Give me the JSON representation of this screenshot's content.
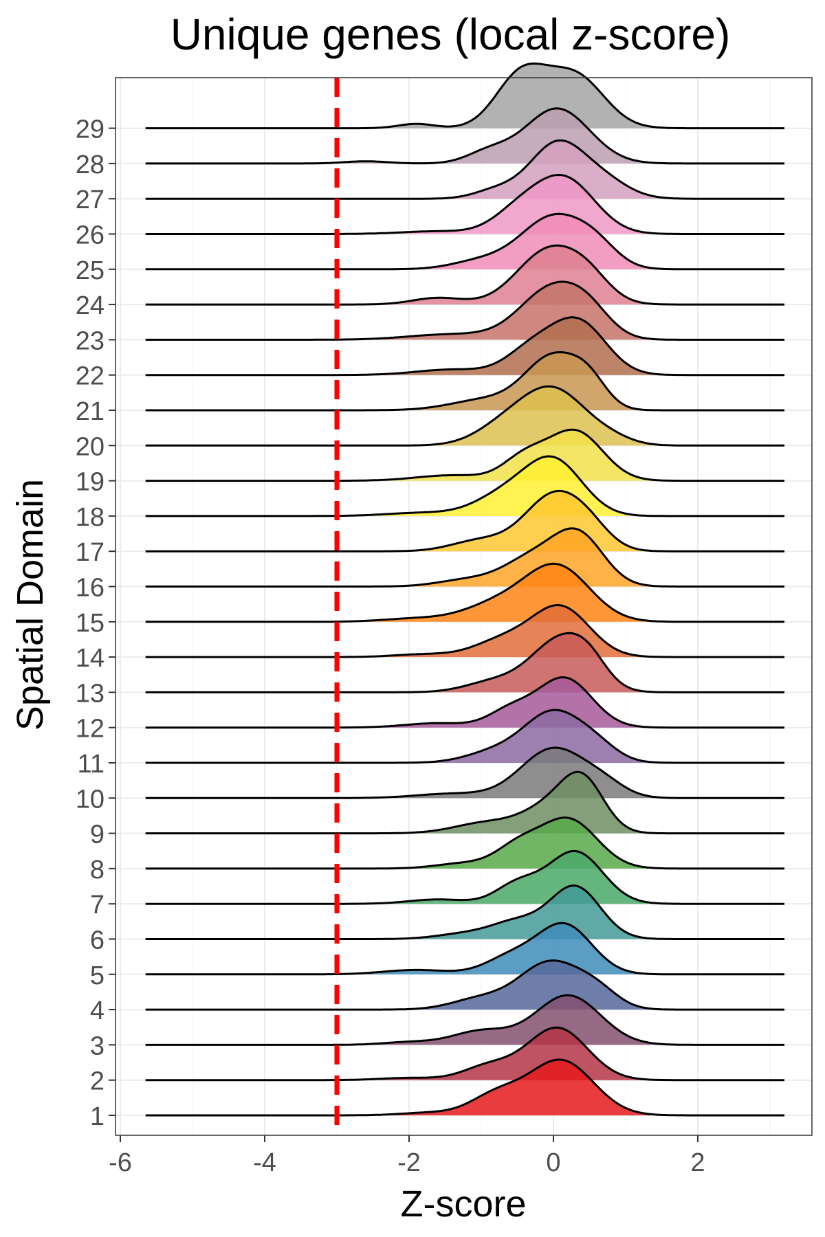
{
  "chart_data": {
    "type": "ridgeline",
    "title": "Unique genes (local z-score)",
    "xlabel": "Z-score",
    "ylabel": "Spatial Domain",
    "xlim": [
      -6.2,
      3.6
    ],
    "x_ticks": [
      -6,
      -4,
      -2,
      0,
      2
    ],
    "x_tick_labels": [
      "-6",
      "-4",
      "-2",
      "0",
      "2"
    ],
    "categories": [
      "1",
      "2",
      "3",
      "4",
      "5",
      "6",
      "7",
      "8",
      "9",
      "10",
      "11",
      "12",
      "13",
      "14",
      "15",
      "16",
      "17",
      "18",
      "19",
      "20",
      "21",
      "22",
      "23",
      "24",
      "25",
      "26",
      "27",
      "28",
      "29"
    ],
    "density_x_range": [
      -5.65,
      3.2
    ],
    "threshold_line": {
      "x": -3,
      "color": "#ff0000",
      "style": "dashed"
    },
    "grid": true,
    "series": [
      {
        "name": "1",
        "color": "#e41a1c",
        "peaks": [
          {
            "mu": 0.1,
            "sigma": 0.45,
            "amp": 1.0
          },
          {
            "mu": -0.8,
            "sigma": 0.35,
            "amp": 0.35
          },
          {
            "mu": -1.7,
            "sigma": 0.4,
            "amp": 0.05
          }
        ]
      },
      {
        "name": "2",
        "color": "#b43545",
        "peaks": [
          {
            "mu": 0.05,
            "sigma": 0.42,
            "amp": 0.95
          },
          {
            "mu": -0.9,
            "sigma": 0.35,
            "amp": 0.25
          },
          {
            "mu": -2.0,
            "sigma": 0.4,
            "amp": 0.04
          }
        ]
      },
      {
        "name": "3",
        "color": "#845070",
        "peaks": [
          {
            "mu": 0.2,
            "sigma": 0.45,
            "amp": 0.9
          },
          {
            "mu": -1.0,
            "sigma": 0.4,
            "amp": 0.25
          },
          {
            "mu": -2.0,
            "sigma": 0.35,
            "amp": 0.05
          }
        ]
      },
      {
        "name": "4",
        "color": "#56699a",
        "peaks": [
          {
            "mu": -0.05,
            "sigma": 0.42,
            "amp": 0.85
          },
          {
            "mu": 0.6,
            "sigma": 0.3,
            "amp": 0.3
          },
          {
            "mu": -1.0,
            "sigma": 0.4,
            "amp": 0.2
          }
        ]
      },
      {
        "name": "5",
        "color": "#3f8cb8",
        "peaks": [
          {
            "mu": 0.15,
            "sigma": 0.38,
            "amp": 0.9
          },
          {
            "mu": -0.6,
            "sigma": 0.35,
            "amp": 0.3
          },
          {
            "mu": -1.9,
            "sigma": 0.45,
            "amp": 0.08
          }
        ]
      },
      {
        "name": "6",
        "color": "#449a98",
        "peaks": [
          {
            "mu": 0.3,
            "sigma": 0.35,
            "amp": 0.95
          },
          {
            "mu": -0.5,
            "sigma": 0.35,
            "amp": 0.3
          },
          {
            "mu": -1.2,
            "sigma": 0.4,
            "amp": 0.1
          }
        ]
      },
      {
        "name": "7",
        "color": "#4aa869",
        "peaks": [
          {
            "mu": 0.3,
            "sigma": 0.38,
            "amp": 0.95
          },
          {
            "mu": -0.5,
            "sigma": 0.3,
            "amp": 0.35
          },
          {
            "mu": -1.6,
            "sigma": 0.4,
            "amp": 0.08
          }
        ]
      },
      {
        "name": "8",
        "color": "#57a94a",
        "peaks": [
          {
            "mu": 0.2,
            "sigma": 0.4,
            "amp": 0.9
          },
          {
            "mu": -0.5,
            "sigma": 0.3,
            "amp": 0.35
          },
          {
            "mu": -1.2,
            "sigma": 0.4,
            "amp": 0.1
          }
        ]
      },
      {
        "name": "9",
        "color": "#6f8f63",
        "peaks": [
          {
            "mu": 0.4,
            "sigma": 0.3,
            "amp": 0.95
          },
          {
            "mu": -0.1,
            "sigma": 0.35,
            "amp": 0.4
          },
          {
            "mu": -0.9,
            "sigma": 0.45,
            "amp": 0.2
          }
        ]
      },
      {
        "name": "10",
        "color": "#7a7a7a",
        "peaks": [
          {
            "mu": 0.0,
            "sigma": 0.45,
            "amp": 0.9
          },
          {
            "mu": 0.7,
            "sigma": 0.3,
            "amp": 0.2
          },
          {
            "mu": -1.4,
            "sigma": 0.5,
            "amp": 0.08
          }
        ]
      },
      {
        "name": "11",
        "color": "#8c6aa2",
        "peaks": [
          {
            "mu": 0.0,
            "sigma": 0.4,
            "amp": 0.9
          },
          {
            "mu": 0.6,
            "sigma": 0.3,
            "amp": 0.25
          },
          {
            "mu": -0.8,
            "sigma": 0.4,
            "amp": 0.2
          }
        ]
      },
      {
        "name": "12",
        "color": "#a65a9a",
        "peaks": [
          {
            "mu": 0.15,
            "sigma": 0.38,
            "amp": 0.9
          },
          {
            "mu": -0.6,
            "sigma": 0.3,
            "amp": 0.3
          },
          {
            "mu": -1.6,
            "sigma": 0.45,
            "amp": 0.08
          }
        ]
      },
      {
        "name": "13",
        "color": "#c85a5a",
        "peaks": [
          {
            "mu": 0.1,
            "sigma": 0.4,
            "amp": 0.95
          },
          {
            "mu": 0.5,
            "sigma": 0.25,
            "amp": 0.3
          },
          {
            "mu": -0.8,
            "sigma": 0.4,
            "amp": 0.2
          }
        ]
      },
      {
        "name": "14",
        "color": "#e26f3a",
        "peaks": [
          {
            "mu": 0.1,
            "sigma": 0.4,
            "amp": 0.9
          },
          {
            "mu": -0.7,
            "sigma": 0.4,
            "amp": 0.3
          },
          {
            "mu": -1.8,
            "sigma": 0.4,
            "amp": 0.05
          }
        ]
      },
      {
        "name": "15",
        "color": "#ff8414",
        "peaks": [
          {
            "mu": 0.05,
            "sigma": 0.45,
            "amp": 1.0
          },
          {
            "mu": -0.8,
            "sigma": 0.45,
            "amp": 0.3
          },
          {
            "mu": -1.9,
            "sigma": 0.45,
            "amp": 0.06
          }
        ]
      },
      {
        "name": "16",
        "color": "#ffa424",
        "peaks": [
          {
            "mu": 0.35,
            "sigma": 0.35,
            "amp": 0.9
          },
          {
            "mu": -0.3,
            "sigma": 0.4,
            "amp": 0.5
          },
          {
            "mu": -1.2,
            "sigma": 0.4,
            "amp": 0.12
          }
        ]
      },
      {
        "name": "17",
        "color": "#ffc830",
        "peaks": [
          {
            "mu": 0.0,
            "sigma": 0.4,
            "amp": 1.0
          },
          {
            "mu": 0.5,
            "sigma": 0.3,
            "amp": 0.3
          },
          {
            "mu": -1.0,
            "sigma": 0.4,
            "amp": 0.2
          }
        ]
      },
      {
        "name": "18",
        "color": "#fff033",
        "peaks": [
          {
            "mu": 0.0,
            "sigma": 0.4,
            "amp": 1.0
          },
          {
            "mu": -0.7,
            "sigma": 0.4,
            "amp": 0.35
          },
          {
            "mu": -1.8,
            "sigma": 0.5,
            "amp": 0.06
          }
        ]
      },
      {
        "name": "19",
        "color": "#f2e24a",
        "peaks": [
          {
            "mu": 0.3,
            "sigma": 0.38,
            "amp": 0.9
          },
          {
            "mu": -0.4,
            "sigma": 0.3,
            "amp": 0.4
          },
          {
            "mu": -1.4,
            "sigma": 0.5,
            "amp": 0.1
          }
        ]
      },
      {
        "name": "20",
        "color": "#ddc04f",
        "peaks": [
          {
            "mu": 0.0,
            "sigma": 0.45,
            "amp": 1.0
          },
          {
            "mu": -0.7,
            "sigma": 0.4,
            "amp": 0.3
          },
          {
            "mu": 0.8,
            "sigma": 0.3,
            "amp": 0.1
          }
        ]
      },
      {
        "name": "21",
        "color": "#c99653",
        "peaks": [
          {
            "mu": 0.0,
            "sigma": 0.38,
            "amp": 0.95
          },
          {
            "mu": 0.5,
            "sigma": 0.25,
            "amp": 0.4
          },
          {
            "mu": -0.9,
            "sigma": 0.5,
            "amp": 0.2
          }
        ]
      },
      {
        "name": "22",
        "color": "#b26f4f",
        "peaks": [
          {
            "mu": 0.35,
            "sigma": 0.38,
            "amp": 0.95
          },
          {
            "mu": -0.3,
            "sigma": 0.35,
            "amp": 0.45
          },
          {
            "mu": -1.4,
            "sigma": 0.5,
            "amp": 0.1
          }
        ]
      },
      {
        "name": "23",
        "color": "#c5736a",
        "peaks": [
          {
            "mu": 0.0,
            "sigma": 0.45,
            "amp": 0.95
          },
          {
            "mu": 0.5,
            "sigma": 0.3,
            "amp": 0.3
          },
          {
            "mu": -1.4,
            "sigma": 0.6,
            "amp": 0.1
          }
        ]
      },
      {
        "name": "24",
        "color": "#de8090",
        "peaks": [
          {
            "mu": -0.05,
            "sigma": 0.45,
            "amp": 1.0
          },
          {
            "mu": 0.5,
            "sigma": 0.3,
            "amp": 0.3
          },
          {
            "mu": -1.6,
            "sigma": 0.35,
            "amp": 0.12
          }
        ]
      },
      {
        "name": "25",
        "color": "#f08cb7",
        "peaks": [
          {
            "mu": 0.0,
            "sigma": 0.45,
            "amp": 0.95
          },
          {
            "mu": 0.6,
            "sigma": 0.3,
            "amp": 0.3
          },
          {
            "mu": -1.0,
            "sigma": 0.4,
            "amp": 0.15
          }
        ]
      },
      {
        "name": "26",
        "color": "#ee98c5",
        "peaks": [
          {
            "mu": 0.15,
            "sigma": 0.42,
            "amp": 1.0
          },
          {
            "mu": -0.5,
            "sigma": 0.35,
            "amp": 0.35
          },
          {
            "mu": -1.6,
            "sigma": 0.5,
            "amp": 0.05
          }
        ]
      },
      {
        "name": "27",
        "color": "#d3a0c0",
        "peaks": [
          {
            "mu": 0.05,
            "sigma": 0.38,
            "amp": 1.0
          },
          {
            "mu": 0.7,
            "sigma": 0.35,
            "amp": 0.3
          },
          {
            "mu": -0.8,
            "sigma": 0.3,
            "amp": 0.15
          }
        ]
      },
      {
        "name": "28",
        "color": "#bc9faf",
        "peaks": [
          {
            "mu": 0.05,
            "sigma": 0.45,
            "amp": 1.0
          },
          {
            "mu": -0.9,
            "sigma": 0.3,
            "amp": 0.2
          },
          {
            "mu": -2.6,
            "sigma": 0.3,
            "amp": 0.04
          }
        ]
      },
      {
        "name": "29",
        "color": "#a5a5a5",
        "peaks": [
          {
            "mu": -0.45,
            "sigma": 0.35,
            "amp": 0.95
          },
          {
            "mu": 0.3,
            "sigma": 0.4,
            "amp": 0.95
          },
          {
            "mu": -1.9,
            "sigma": 0.25,
            "amp": 0.08
          }
        ]
      }
    ]
  }
}
